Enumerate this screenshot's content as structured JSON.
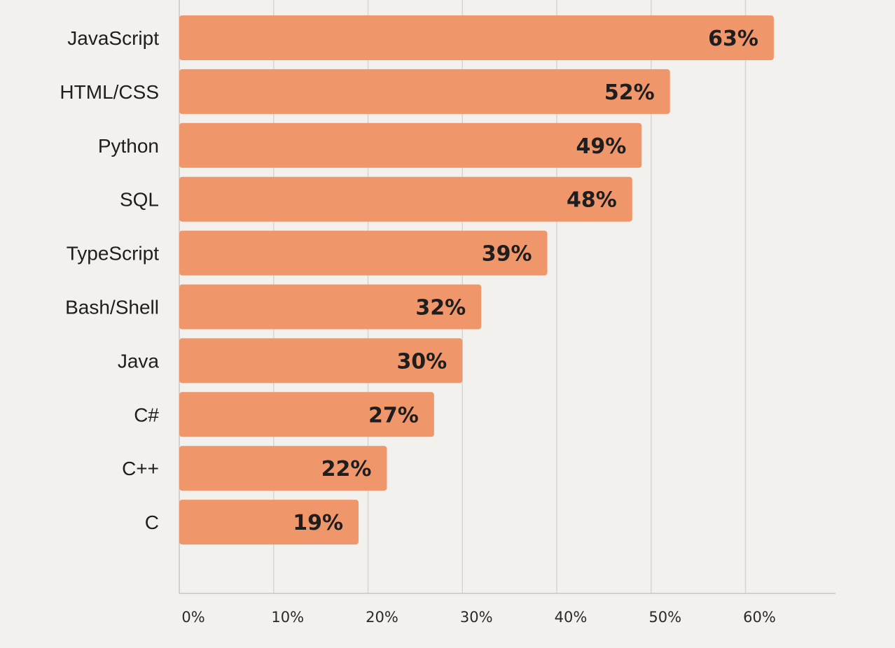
{
  "chart_data": {
    "type": "bar",
    "orientation": "horizontal",
    "categories": [
      "JavaScript",
      "HTML/CSS",
      "Python",
      "SQL",
      "TypeScript",
      "Bash/Shell",
      "Java",
      "C#",
      "C++",
      "C"
    ],
    "values": [
      63,
      52,
      49,
      48,
      39,
      32,
      30,
      27,
      22,
      19
    ],
    "value_labels": [
      "63%",
      "52%",
      "49%",
      "48%",
      "39%",
      "32%",
      "30%",
      "27%",
      "22%",
      "19%"
    ],
    "x_ticks": [
      0,
      10,
      20,
      30,
      40,
      50,
      60
    ],
    "x_tick_labels": [
      "0%",
      "10%",
      "20%",
      "30%",
      "40%",
      "50%",
      "60%"
    ],
    "xlim": [
      0,
      69
    ],
    "title": "",
    "xlabel": "",
    "ylabel": "",
    "grid": "vertical",
    "legend": "none",
    "colors": {
      "bar": "#f0966b",
      "background": "#f2f1ee",
      "text": "#1e1e1e"
    }
  }
}
